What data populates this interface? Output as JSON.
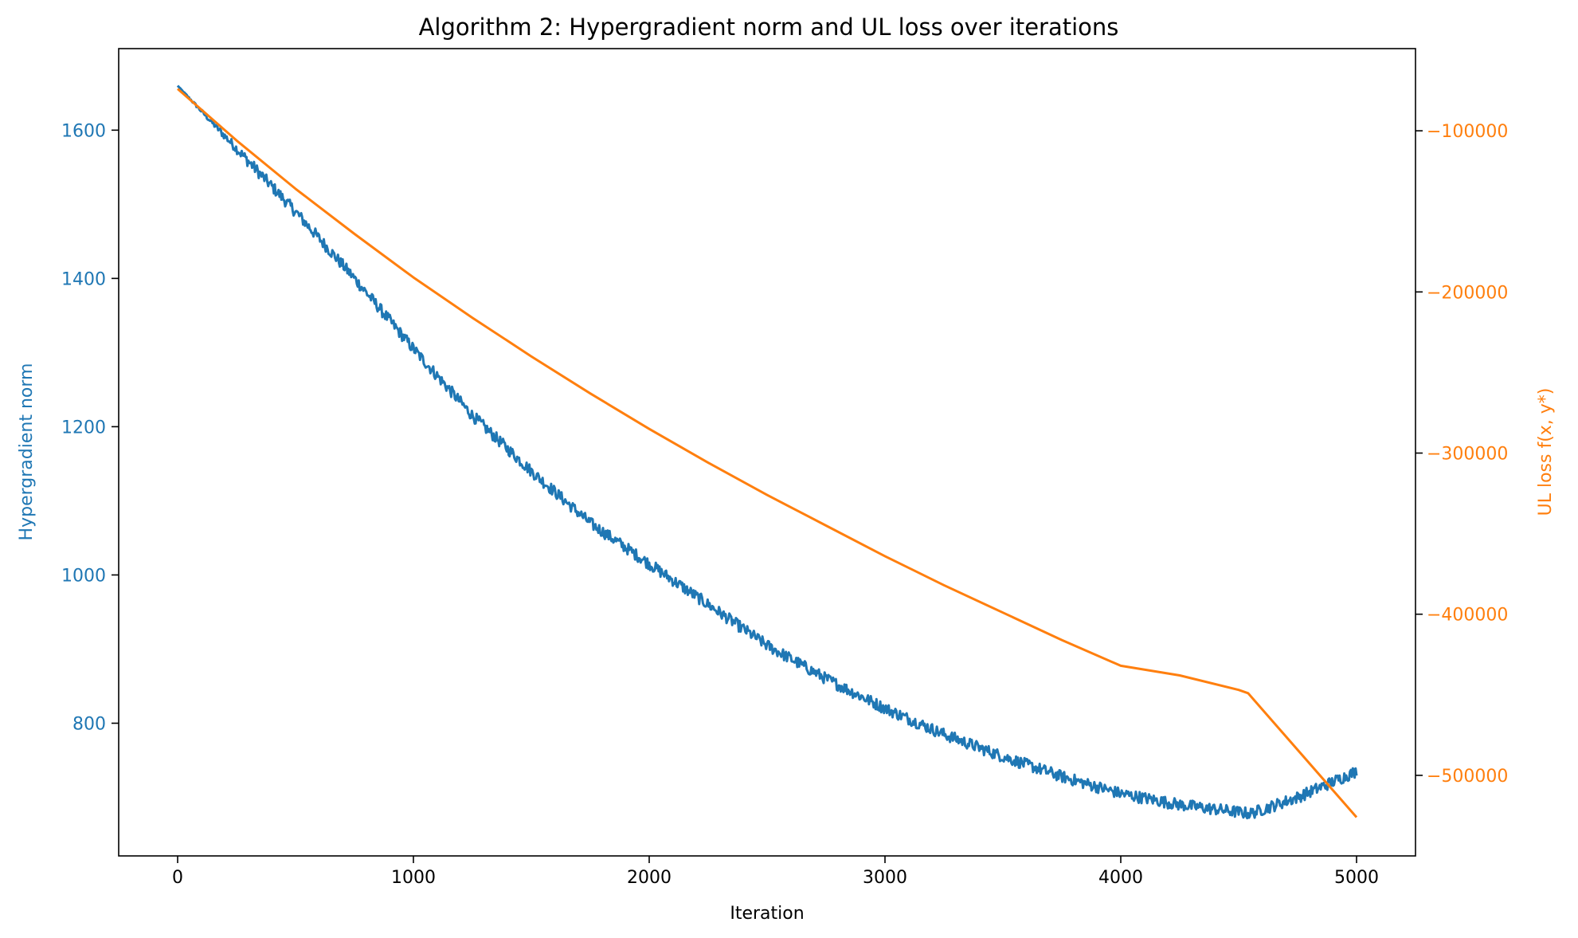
{
  "chart_data": {
    "type": "line",
    "title": "Algorithm 2: Hypergradient norm and UL loss over iterations",
    "xlabel": "Iteration",
    "ylabel_left": "Hypergradient norm",
    "ylabel_right": "UL loss f(x, y*)",
    "xlim": [
      -250,
      5250
    ],
    "ylim_left": [
      621,
      1710
    ],
    "ylim_right": [
      -550000,
      -49000
    ],
    "xticks": [
      0,
      1000,
      2000,
      3000,
      4000,
      5000
    ],
    "xtick_labels": [
      "0",
      "1000",
      "2000",
      "3000",
      "4000",
      "5000"
    ],
    "yticks_left": [
      800,
      1000,
      1200,
      1400,
      1600
    ],
    "ytick_labels_left": [
      "800",
      "1000",
      "1200",
      "1400",
      "1600"
    ],
    "yticks_right": [
      -500000,
      -400000,
      -300000,
      -200000,
      -100000
    ],
    "ytick_labels_right": [
      "−500000",
      "−400000",
      "−300000",
      "−200000",
      "−100000"
    ],
    "grid": false,
    "legend": "none",
    "series": [
      {
        "axis": "left",
        "color": "#1f77b4",
        "noise_amplitude": 8,
        "x": [
          0,
          250,
          500,
          750,
          1000,
          1250,
          1500,
          1750,
          2000,
          2250,
          2500,
          2750,
          3000,
          3250,
          3500,
          3750,
          4000,
          4250,
          4500,
          4550,
          4750,
          5000
        ],
        "y": [
          1660,
          1575,
          1490,
          1400,
          1305,
          1215,
          1140,
          1070,
          1015,
          960,
          905,
          860,
          820,
          785,
          755,
          728,
          705,
          690,
          680,
          678,
          700,
          735
        ]
      },
      {
        "axis": "right",
        "color": "#ff7f0e",
        "noise_amplitude": 0,
        "x": [
          0,
          250,
          500,
          750,
          1000,
          1250,
          1500,
          1750,
          2000,
          2250,
          2500,
          2750,
          3000,
          3250,
          3500,
          3750,
          4000,
          4250,
          4500,
          4540,
          5000
        ],
        "y": [
          -74000,
          -106000,
          -136000,
          -164000,
          -191000,
          -216000,
          -240000,
          -263000,
          -285000,
          -306000,
          -326000,
          -345000,
          -364000,
          -382000,
          -399000,
          -416000,
          -432000,
          -438000,
          -447000,
          -449000,
          -526000
        ]
      }
    ]
  }
}
